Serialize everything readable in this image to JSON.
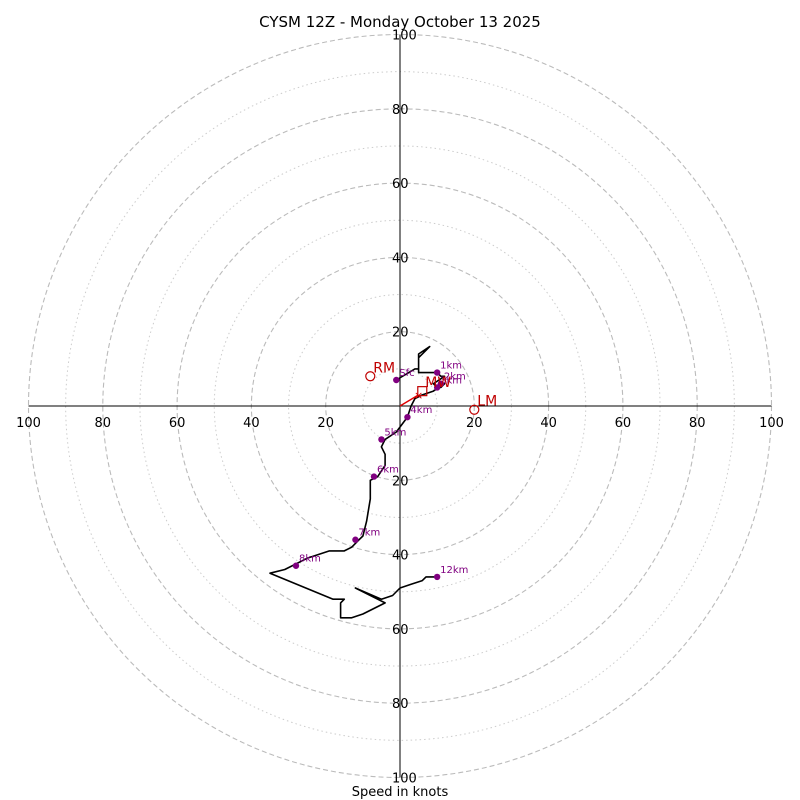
{
  "chart_data": {
    "type": "hodograph",
    "title": "CYSM 12Z - Monday October 13 2025",
    "xlabel": "Speed in knots",
    "units": "knots",
    "range": [
      -100,
      100
    ],
    "solid_rings": [
      20,
      40,
      60,
      80,
      100
    ],
    "dotted_rings": [
      10,
      30,
      50,
      70,
      90
    ],
    "x_ticks": [
      {
        "value": -100,
        "label": "100"
      },
      {
        "value": -80,
        "label": "80"
      },
      {
        "value": -60,
        "label": "60"
      },
      {
        "value": -40,
        "label": "40"
      },
      {
        "value": -20,
        "label": "20"
      },
      {
        "value": 20,
        "label": "20"
      },
      {
        "value": 40,
        "label": "40"
      },
      {
        "value": 60,
        "label": "60"
      },
      {
        "value": 80,
        "label": "80"
      },
      {
        "value": 100,
        "label": "100"
      }
    ],
    "y_ticks": [
      {
        "value": 100,
        "label": "100"
      },
      {
        "value": 80,
        "label": "80"
      },
      {
        "value": 60,
        "label": "60"
      },
      {
        "value": 40,
        "label": "40"
      },
      {
        "value": 20,
        "label": "20"
      },
      {
        "value": -20,
        "label": "20"
      },
      {
        "value": -40,
        "label": "40"
      },
      {
        "value": -60,
        "label": "60"
      },
      {
        "value": -80,
        "label": "80"
      },
      {
        "value": -100,
        "label": "100"
      }
    ],
    "trace": [
      [
        -1,
        7
      ],
      [
        4,
        10
      ],
      [
        5,
        10
      ],
      [
        5,
        14
      ],
      [
        8,
        16
      ],
      [
        7,
        15
      ],
      [
        5,
        13
      ],
      [
        5,
        9
      ],
      [
        7,
        9
      ],
      [
        10,
        9
      ],
      [
        11,
        8
      ],
      [
        12,
        8
      ],
      [
        9,
        6
      ],
      [
        10,
        5
      ],
      [
        11,
        5
      ],
      [
        12,
        6
      ],
      [
        9,
        4
      ],
      [
        6,
        3
      ],
      [
        4,
        2
      ],
      [
        3,
        0
      ],
      [
        2,
        -3
      ],
      [
        -1,
        -7
      ],
      [
        -4,
        -9
      ],
      [
        -5,
        -11
      ],
      [
        -4,
        -13
      ],
      [
        -4,
        -16
      ],
      [
        -6,
        -19
      ],
      [
        -8,
        -20
      ],
      [
        -8,
        -25
      ],
      [
        -9,
        -31
      ],
      [
        -10,
        -35
      ],
      [
        -11,
        -36
      ],
      [
        -13,
        -38
      ],
      [
        -15,
        -39
      ],
      [
        -19,
        -39
      ],
      [
        -25,
        -41
      ],
      [
        -31,
        -44
      ],
      [
        -35,
        -45
      ],
      [
        -18,
        -52
      ],
      [
        -15,
        -52
      ],
      [
        -16,
        -53
      ],
      [
        -16,
        -57
      ],
      [
        -13,
        -57
      ],
      [
        -10,
        -56
      ],
      [
        -4,
        -53
      ],
      [
        -12,
        -49
      ],
      [
        -5,
        -52
      ],
      [
        -2,
        -51
      ],
      [
        0,
        -49
      ],
      [
        3,
        -48
      ],
      [
        6,
        -47
      ],
      [
        7,
        -46
      ],
      [
        10,
        -46
      ]
    ],
    "height_markers": [
      {
        "label": "Sfc",
        "u": -1,
        "v": 7
      },
      {
        "label": "1km",
        "u": 10,
        "v": 9
      },
      {
        "label": "2km",
        "u": 11,
        "v": 6
      },
      {
        "label": "3km",
        "u": 10,
        "v": 5
      },
      {
        "label": "4km",
        "u": 2,
        "v": -3
      },
      {
        "label": "5km",
        "u": -5,
        "v": -9
      },
      {
        "label": "6km",
        "u": -7,
        "v": -19
      },
      {
        "label": "7km",
        "u": -12,
        "v": -36
      },
      {
        "label": "8km",
        "u": -28,
        "v": -43
      },
      {
        "label": "12km",
        "u": 10,
        "v": -46
      }
    ],
    "storm_motion": [
      {
        "label": "RM",
        "u": -8,
        "v": 8
      },
      {
        "label": "LM",
        "u": 20,
        "v": -1
      }
    ],
    "mean_wind": {
      "label": "MW",
      "u": 6,
      "v": 4
    },
    "shear_vector": {
      "from": [
        0,
        0
      ],
      "to": [
        5,
        3
      ]
    }
  }
}
